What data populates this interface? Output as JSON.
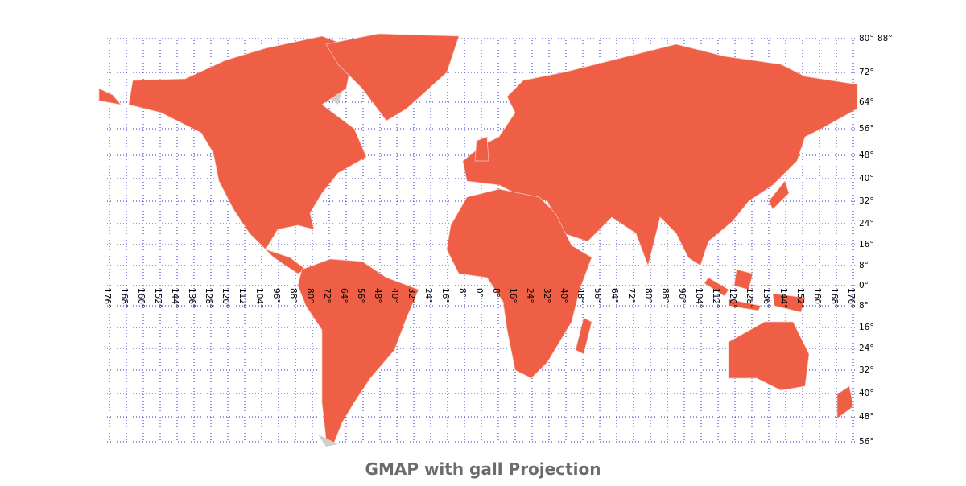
{
  "map": {
    "title": "GMAP with gall Projection",
    "lon_labels": [
      "176°",
      "168°",
      "160°",
      "152°",
      "144°",
      "136°",
      "128°",
      "120°",
      "112°",
      "104°",
      "96°",
      "88°",
      "80°",
      "72°",
      "64°",
      "56°",
      "48°",
      "40°",
      "32°",
      "24°",
      "16°",
      "8°",
      "0°",
      "8°",
      "16°",
      "24°",
      "32°",
      "40°",
      "48°",
      "56°",
      "64°",
      "72°",
      "80°",
      "88°",
      "96°",
      "104°",
      "112°",
      "120°",
      "128°",
      "136°",
      "144°",
      "152°",
      "160°",
      "168°",
      "176°"
    ],
    "lat_labels": [
      "80°",
      "88°",
      "72°",
      "64°",
      "56°",
      "48°",
      "40°",
      "32°",
      "24°",
      "16°",
      "8°",
      "0°",
      "8°",
      "16°",
      "24°",
      "32°",
      "40°",
      "48°",
      "56°"
    ]
  }
}
